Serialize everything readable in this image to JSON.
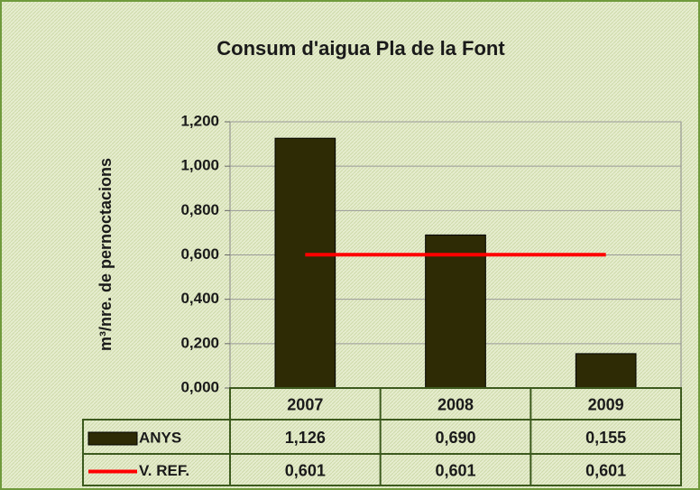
{
  "chart_data": {
    "type": "bar",
    "title": "Consum d'aigua Pla de la Font",
    "y_label": "m³/nre. de pernoctacions",
    "categories": [
      "2007",
      "2008",
      "2009"
    ],
    "series": [
      {
        "name": "ANYS",
        "color": "#2e2b05",
        "type": "bar",
        "values": [
          1.126,
          0.69,
          0.155
        ],
        "value_labels": [
          "1,126",
          "0,690",
          "0,155"
        ]
      },
      {
        "name": "V. REF.",
        "color": "#ff0000",
        "type": "line",
        "values": [
          0.601,
          0.601,
          0.601
        ],
        "value_labels": [
          "0,601",
          "0,601",
          "0,601"
        ]
      }
    ],
    "ylim": [
      0,
      1.2
    ],
    "yticks": [
      {
        "value": 0,
        "label": "0,000"
      },
      {
        "value": 0.2,
        "label": "0,200"
      },
      {
        "value": 0.4,
        "label": "0,400"
      },
      {
        "value": 0.6,
        "label": "0,600"
      },
      {
        "value": 0.8,
        "label": "0,800"
      },
      {
        "value": 1.0,
        "label": "1,000"
      },
      {
        "value": 1.2,
        "label": "1,200"
      }
    ],
    "grid": true
  }
}
